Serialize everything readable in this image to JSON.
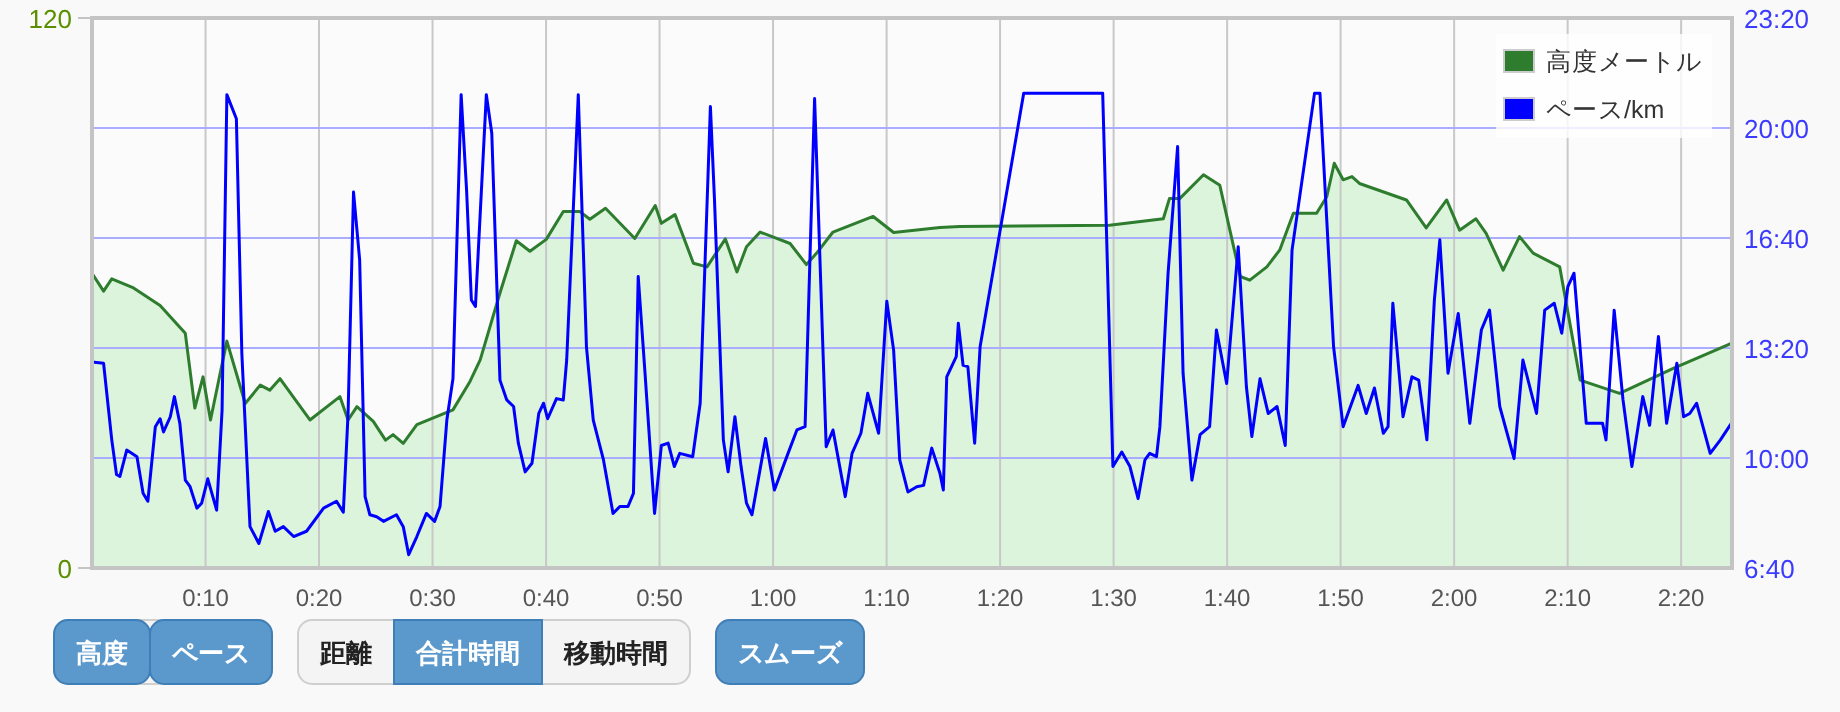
{
  "chart_data": {
    "type": "area",
    "series": [
      {
        "name": "高度メートル",
        "color": "#2e7d2e",
        "x": [
          0,
          0.017,
          0.029,
          0.061,
          0.1,
          0.137,
          0.151,
          0.163,
          0.174,
          0.198,
          0.225,
          0.247,
          0.261,
          0.276,
          0.32,
          0.364,
          0.376,
          0.389,
          0.413,
          0.431,
          0.442,
          0.457,
          0.477,
          0.53,
          0.555,
          0.57,
          0.599,
          0.623,
          0.643,
          0.667,
          0.692,
          0.716,
          0.731,
          0.754,
          0.797,
          0.827,
          0.836,
          0.856,
          0.883,
          0.903,
          0.93,
          0.947,
          0.961,
          0.981,
          1.025,
          1.049,
          1.064,
          1.088,
          1.147,
          1.177,
          1.245,
          1.274,
          1.494,
          1.573,
          1.582,
          1.597,
          1.632,
          1.656,
          1.686,
          1.7,
          1.725,
          1.744,
          1.764,
          1.798,
          1.813,
          1.824,
          1.837,
          1.85,
          1.861,
          1.93,
          1.959,
          1.989,
          2.008,
          2.032,
          2.047,
          2.072,
          2.096,
          2.116,
          2.155,
          2.185,
          2.243,
          2.321,
          2.407
        ],
        "values": [
          64.3,
          60.4,
          63.1,
          61.1,
          57.3,
          51.2,
          34.9,
          41.7,
          32.3,
          49.5,
          35.9,
          39.9,
          38.8,
          41.3,
          32.3,
          37.4,
          32.3,
          35.2,
          32.0,
          27.9,
          29.1,
          27.2,
          31.3,
          34.5,
          40.7,
          45.4,
          60.0,
          71.4,
          69.1,
          71.7,
          77.8,
          77.8,
          76.1,
          78.5,
          71.9,
          79.1,
          75.2,
          77.1,
          66.5,
          65.7,
          71.8,
          64.6,
          70.1,
          73.3,
          70.8,
          66.2,
          68.7,
          73.3,
          76.7,
          73.2,
          74.3,
          74.5,
          74.8,
          76.2,
          80.6,
          80.6,
          85.8,
          83.5,
          63.6,
          62.8,
          65.7,
          69.4,
          77.4,
          77.4,
          81.0,
          88.3,
          84.7,
          85.4,
          83.9,
          80.3,
          74.2,
          80.3,
          73.7,
          76.2,
          73.0,
          65.0,
          72.3,
          68.7,
          65.7,
          41.0,
          38.1,
          43.5,
          49.0
        ]
      },
      {
        "name": "ペース/km",
        "type": "line",
        "axis": "y2",
        "color": "#0000ff",
        "x": [
          0,
          0.017,
          0.029,
          0.036,
          0.041,
          0.051,
          0.066,
          0.075,
          0.082,
          0.093,
          0.1,
          0.105,
          0.115,
          0.121,
          0.129,
          0.137,
          0.144,
          0.154,
          0.161,
          0.17,
          0.183,
          0.191,
          0.198,
          0.212,
          0.22,
          0.232,
          0.245,
          0.259,
          0.269,
          0.281,
          0.296,
          0.315,
          0.34,
          0.359,
          0.369,
          0.376,
          0.384,
          0.393,
          0.401,
          0.408,
          0.418,
          0.428,
          0.447,
          0.457,
          0.465,
          0.477,
          0.491,
          0.503,
          0.511,
          0.521,
          0.53,
          0.542,
          0.55,
          0.557,
          0.563,
          0.579,
          0.587,
          0.599,
          0.609,
          0.619,
          0.626,
          0.636,
          0.646,
          0.656,
          0.663,
          0.669,
          0.682,
          0.692,
          0.697,
          0.714,
          0.726,
          0.736,
          0.751,
          0.765,
          0.775,
          0.787,
          0.795,
          0.802,
          0.812,
          0.826,
          0.836,
          0.846,
          0.855,
          0.863,
          0.882,
          0.893,
          0.908,
          0.914,
          0.927,
          0.934,
          0.944,
          0.953,
          0.961,
          0.969,
          0.989,
          1.002,
          1.022,
          1.035,
          1.047,
          1.061,
          1.078,
          1.088,
          1.106,
          1.116,
          1.129,
          1.139,
          1.155,
          1.167,
          1.177,
          1.186,
          1.198,
          1.211,
          1.221,
          1.233,
          1.245,
          1.25,
          1.255,
          1.269,
          1.272,
          1.279,
          1.286,
          1.296,
          1.304,
          1.368,
          1.484,
          1.499,
          1.512,
          1.524,
          1.536,
          1.546,
          1.553,
          1.563,
          1.568,
          1.58,
          1.594,
          1.602,
          1.615,
          1.627,
          1.641,
          1.651,
          1.666,
          1.683,
          1.695,
          1.703,
          1.715,
          1.727,
          1.74,
          1.752,
          1.762,
          1.795,
          1.803,
          1.823,
          1.837,
          1.859,
          1.871,
          1.883,
          1.896,
          1.903,
          1.91,
          1.925,
          1.938,
          1.948,
          1.96,
          1.971,
          1.979,
          1.991,
          2.006,
          2.023,
          2.04,
          2.052,
          2.067,
          2.088,
          2.101,
          2.121,
          2.133,
          2.147,
          2.158,
          2.167,
          2.176,
          2.194,
          2.218,
          2.223,
          2.235,
          2.248,
          2.261,
          2.277,
          2.287,
          2.3,
          2.312,
          2.327,
          2.337,
          2.346,
          2.356,
          2.376,
          2.391,
          2.407
        ],
        "values": [
          12.91,
          12.87,
          10.55,
          9.5,
          9.44,
          10.24,
          10.04,
          8.93,
          8.69,
          10.95,
          11.19,
          10.79,
          11.25,
          11.86,
          11.05,
          9.33,
          9.13,
          8.48,
          8.63,
          9.37,
          8.42,
          11.45,
          21.01,
          20.28,
          13.17,
          7.92,
          7.41,
          8.38,
          7.78,
          7.92,
          7.62,
          7.78,
          8.48,
          8.69,
          8.36,
          11.35,
          18.06,
          16.0,
          8.83,
          8.28,
          8.22,
          8.08,
          8.28,
          7.92,
          7.07,
          7.62,
          8.32,
          8.08,
          8.53,
          11.15,
          12.4,
          21.01,
          18.12,
          14.79,
          14.59,
          21.01,
          19.84,
          12.36,
          11.76,
          11.56,
          10.45,
          9.58,
          9.84,
          11.35,
          11.66,
          11.19,
          11.8,
          11.76,
          12.97,
          21.01,
          13.37,
          11.15,
          9.94,
          8.32,
          8.53,
          8.53,
          8.93,
          15.5,
          12.57,
          8.32,
          10.38,
          10.45,
          9.74,
          10.14,
          10.04,
          11.66,
          20.65,
          17.82,
          10.55,
          9.58,
          11.25,
          9.74,
          8.63,
          8.28,
          10.59,
          9.03,
          10.14,
          10.85,
          10.95,
          20.89,
          10.34,
          10.85,
          8.83,
          10.14,
          10.75,
          11.96,
          10.75,
          14.75,
          13.27,
          9.94,
          8.97,
          9.13,
          9.17,
          10.3,
          9.54,
          9.03,
          12.46,
          13.07,
          14.08,
          12.81,
          12.77,
          10.45,
          13.37,
          21.05,
          21.05,
          9.74,
          10.18,
          9.74,
          8.77,
          9.94,
          10.14,
          10.04,
          10.95,
          15.6,
          19.44,
          12.57,
          9.33,
          10.71,
          10.95,
          13.88,
          12.26,
          16.4,
          12.16,
          10.65,
          12.4,
          11.35,
          11.56,
          10.38,
          16.3,
          21.05,
          21.05,
          13.37,
          10.95,
          12.2,
          11.35,
          12.12,
          10.75,
          10.95,
          14.69,
          11.25,
          12.46,
          12.36,
          10.55,
          14.79,
          16.61,
          12.57,
          14.38,
          11.05,
          13.88,
          14.48,
          11.56,
          9.98,
          12.97,
          11.35,
          14.48,
          14.69,
          13.78,
          15.19,
          15.6,
          11.05,
          11.05,
          10.55,
          14.48,
          11.76,
          9.74,
          11.86,
          10.99,
          13.68,
          11.05,
          12.87,
          11.25,
          11.35,
          11.66,
          10.14,
          10.55,
          11.05
        ]
      }
    ],
    "xlim": [
      0,
      2.408
    ],
    "xticks": [
      {
        "value": 0.1667,
        "label": "0:10"
      },
      {
        "value": 0.3333,
        "label": "0:20"
      },
      {
        "value": 0.5,
        "label": "0:30"
      },
      {
        "value": 0.6667,
        "label": "0:40"
      },
      {
        "value": 0.8333,
        "label": "0:50"
      },
      {
        "value": 1,
        "label": "1:00"
      },
      {
        "value": 1.1667,
        "label": "1:10"
      },
      {
        "value": 1.3333,
        "label": "1:20"
      },
      {
        "value": 1.5,
        "label": "1:30"
      },
      {
        "value": 1.6667,
        "label": "1:40"
      },
      {
        "value": 1.8333,
        "label": "1:50"
      },
      {
        "value": 2,
        "label": "2:00"
      },
      {
        "value": 2.1667,
        "label": "2:10"
      },
      {
        "value": 2.3333,
        "label": "2:20"
      }
    ],
    "ylim": [
      0,
      120
    ],
    "yticks": [
      0,
      120
    ],
    "y2lim": [
      6.667,
      23.333
    ],
    "y2ticks": [
      {
        "value": 6.667,
        "label": "6:40"
      },
      {
        "value": 10,
        "label": "10:00"
      },
      {
        "value": 13.333,
        "label": "13:20"
      },
      {
        "value": 16.667,
        "label": "16:40"
      },
      {
        "value": 20,
        "label": "20:00"
      },
      {
        "value": 23.333,
        "label": "23:20"
      }
    ],
    "grid": true,
    "legend": "top right",
    "annotations": [
      "高度",
      "ペース",
      "距離",
      "合計時間",
      "移動時間",
      "スムーズ"
    ]
  }
}
